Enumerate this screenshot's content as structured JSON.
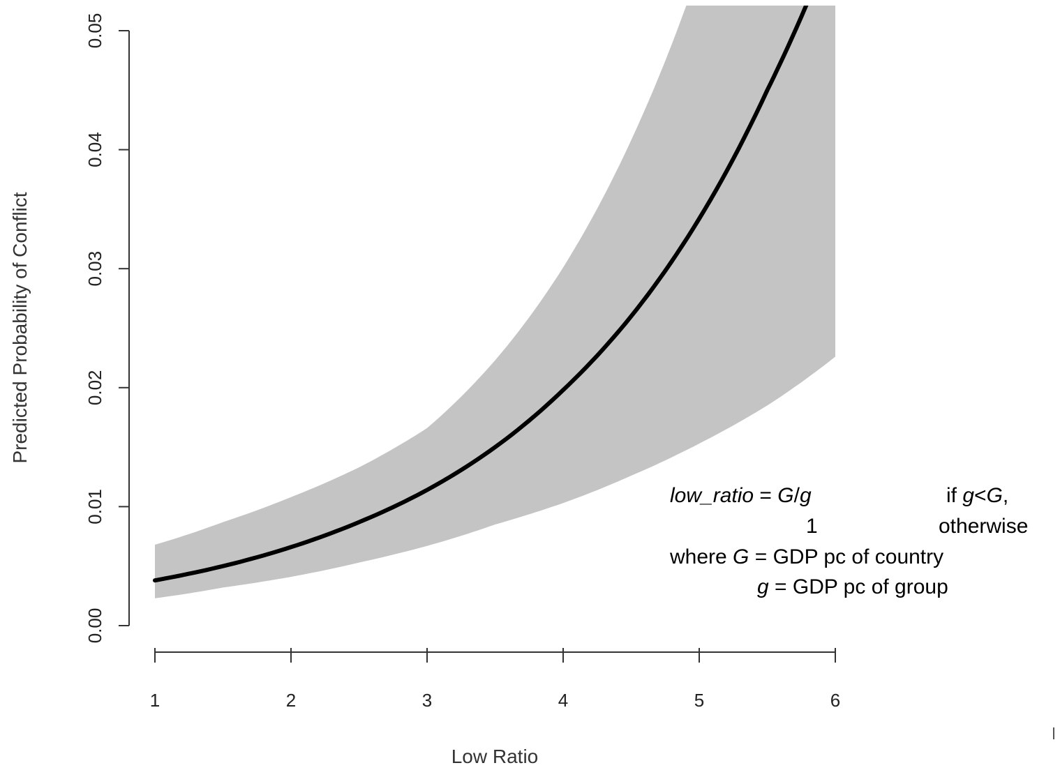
{
  "chart_data": {
    "type": "line",
    "title": "",
    "xlabel": "Low Ratio",
    "ylabel": "Predicted Probability of Conflict",
    "xlim": [
      1,
      6
    ],
    "ylim": [
      0,
      0.05
    ],
    "x_ticks": [
      1,
      2,
      3,
      4,
      5,
      6
    ],
    "y_ticks": [
      0.0,
      0.01,
      0.02,
      0.03,
      0.04,
      0.05
    ],
    "x_tick_labels": [
      "1",
      "2",
      "3",
      "4",
      "5",
      "6"
    ],
    "y_tick_labels": [
      "0.00",
      "0.01",
      "0.02",
      "0.03",
      "0.04",
      "0.05"
    ],
    "grid": false,
    "legend": "none",
    "series": [
      {
        "x": [
          1.0,
          1.5,
          2.0,
          2.5,
          3.0,
          3.5,
          4.0,
          4.5,
          5.0,
          5.5,
          5.8
        ],
        "values": [
          0.0038,
          0.005,
          0.0066,
          0.0087,
          0.0114,
          0.015,
          0.0198,
          0.026,
          0.0342,
          0.045,
          0.0525
        ],
        "color": "#000000"
      }
    ],
    "confidence_band": {
      "x": [
        1.0,
        1.5,
        2.0,
        2.5,
        3.0,
        3.5,
        4.0,
        4.5,
        5.0,
        5.5,
        6.0
      ],
      "lower": [
        0.0023,
        0.0032,
        0.0041,
        0.0053,
        0.0067,
        0.0085,
        0.0103,
        0.0126,
        0.0153,
        0.0185,
        0.0226
      ],
      "upper": [
        0.0068,
        0.0087,
        0.0108,
        0.0133,
        0.0166,
        0.0223,
        0.0301,
        0.0408,
        0.0552,
        0.068,
        0.08
      ],
      "color": "#c4c4c4"
    },
    "annotation": {
      "line1": {
        "var": "low_ratio",
        "eq": " = ",
        "big_g": "G",
        "slash": "/",
        "small_g": "g",
        "cond_prefix": "if ",
        "cond_g": "g",
        "cond_lt": "<",
        "cond_G": "G",
        "cond_suffix": ","
      },
      "line2": {
        "value": "1",
        "cond": "otherwise"
      },
      "line3": {
        "prefix": "where ",
        "var": "G",
        "rest": " = GDP pc of country"
      },
      "line4": {
        "var": "g",
        "rest": " = GDP pc of group"
      }
    }
  }
}
